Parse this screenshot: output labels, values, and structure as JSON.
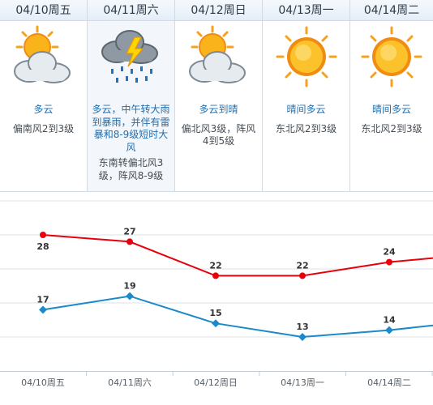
{
  "days": [
    {
      "date": "04/10周五",
      "condition": "多云",
      "wind": "偏南风2到3级",
      "icon": "cloudy-sun-icon"
    },
    {
      "date": "04/11周六",
      "condition": "多云，中午转大雨到暴雨，并伴有雷暴和8-9级短时大风",
      "wind": "东南转偏北风3级，阵风8-9级",
      "icon": "thunderstorm-icon"
    },
    {
      "date": "04/12周日",
      "condition": "多云到晴",
      "wind": "偏北风3级，阵风4到5级",
      "icon": "cloudy-sun-icon"
    },
    {
      "date": "04/13周一",
      "condition": "晴间多云",
      "wind": "东北风2到3级",
      "icon": "sun-icon"
    },
    {
      "date": "04/14周二",
      "condition": "晴间多云",
      "wind": "东北风2到3级",
      "icon": "sun-icon"
    }
  ],
  "chart_data": {
    "type": "line",
    "categories": [
      "04/10周五",
      "04/11周六",
      "04/12周日",
      "04/13周一",
      "04/14周二"
    ],
    "series": [
      {
        "values": [
          28,
          27,
          22,
          22,
          24
        ],
        "color": "#e8000b"
      },
      {
        "values": [
          17,
          19,
          15,
          13,
          14
        ],
        "color": "#1a8ac8"
      }
    ],
    "ylim": [
      8,
      33
    ],
    "grid": true
  }
}
